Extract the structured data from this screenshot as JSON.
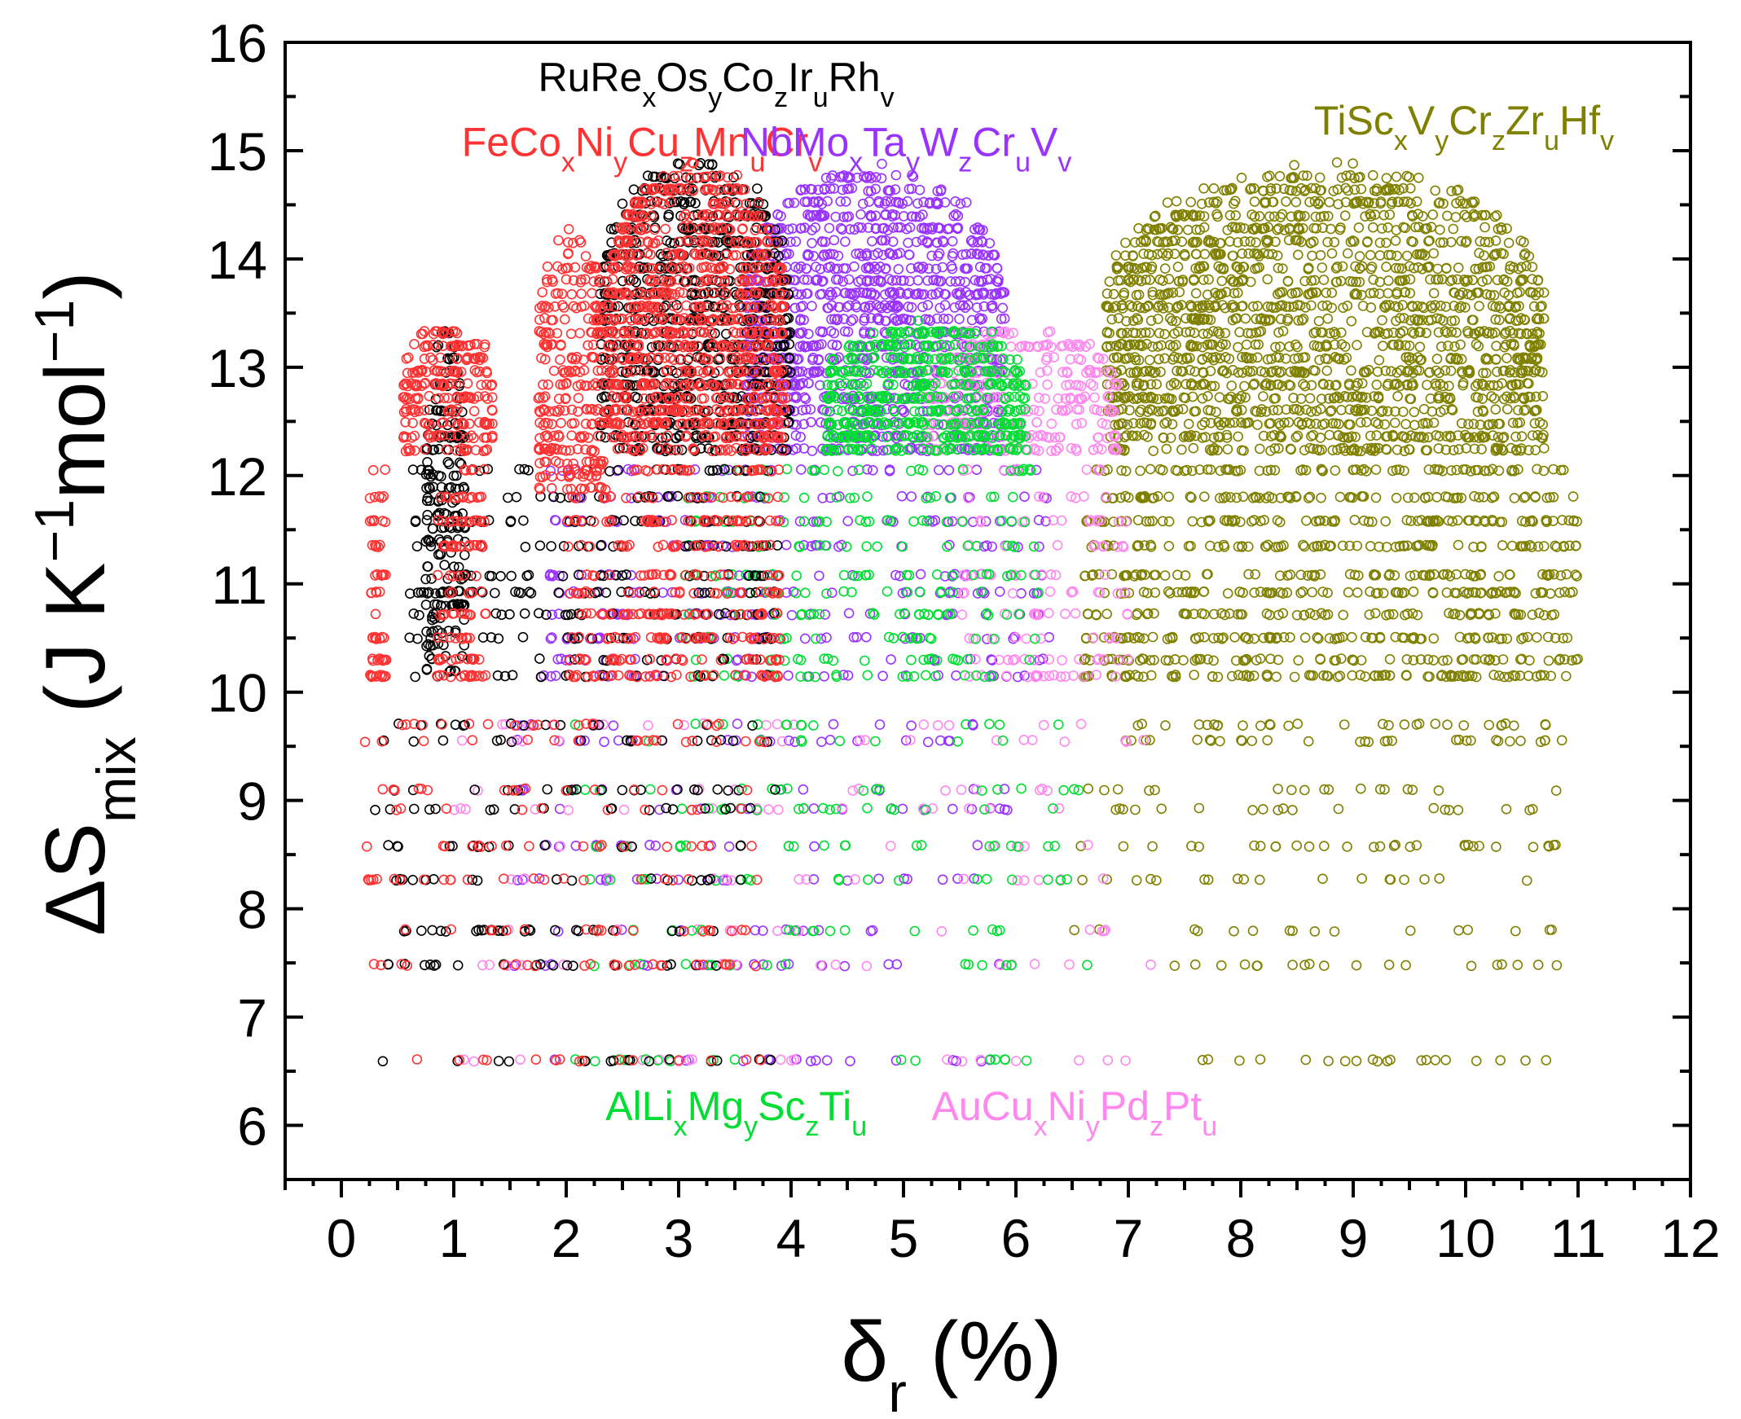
{
  "chart_data": {
    "type": "scatter",
    "xlabel": {
      "main": "δ",
      "sub": "r",
      "rest": " (%)"
    },
    "ylabel": {
      "pre": "ΔS",
      "sub": "mix",
      "mid": " (J K",
      "sup1": "−1",
      "mid2": "mol",
      "sup2": "−1",
      "post": ")"
    },
    "xlim": [
      -0.5,
      12
    ],
    "ylim": [
      5.5,
      16
    ],
    "xticks": [
      0,
      1,
      2,
      3,
      4,
      5,
      6,
      7,
      8,
      9,
      10,
      11,
      12
    ],
    "yticks": [
      6,
      7,
      8,
      9,
      10,
      11,
      12,
      13,
      14,
      15,
      16
    ],
    "marker": "open-circle",
    "grid": false,
    "legend": "inline text labels",
    "y_levels_low": [
      6.6,
      7.48,
      7.8,
      8.27,
      8.58,
      8.92,
      9.1,
      9.55,
      9.7
    ],
    "y_levels_mid": [
      10.15,
      10.3,
      10.5,
      10.72,
      10.92,
      11.08,
      11.35,
      11.58,
      11.8,
      12.05
    ],
    "series": [
      {
        "label_segments": [
          [
            "Ti",
            ""
          ],
          [
            "Sc",
            ""
          ],
          [
            "x",
            "sub"
          ],
          [
            "V",
            ""
          ],
          [
            "y",
            "sub"
          ],
          [
            "Cr",
            ""
          ],
          [
            "z",
            "sub"
          ],
          [
            "Zr",
            ""
          ],
          [
            "u",
            "sub"
          ],
          [
            "Hf",
            ""
          ],
          [
            "v",
            "sub"
          ]
        ],
        "color": "#808000",
        "clusters": [
          {
            "x": [
              6.6,
              11.0
            ],
            "y_levels": "mid",
            "n": 800
          },
          {
            "x": [
              6.5,
              10.9
            ],
            "y_levels": "low",
            "n": 200
          },
          {
            "dome": [
              6.8,
              10.7
            ],
            "y": [
              12.2,
              14.85
            ],
            "n": 1700
          }
        ]
      },
      {
        "label_segments": [
          [
            "Nb",
            ""
          ],
          [
            "Mo",
            ""
          ],
          [
            "x",
            "sub"
          ],
          [
            "Ta",
            ""
          ],
          [
            "y",
            "sub"
          ],
          [
            "W",
            ""
          ],
          [
            "z",
            "sub"
          ],
          [
            "Cr",
            ""
          ],
          [
            "u",
            "sub"
          ],
          [
            "V",
            ""
          ],
          [
            "v",
            "sub"
          ]
        ],
        "color": "#9933ff",
        "clusters": [
          {
            "x": [
              1.8,
              6.3
            ],
            "y_levels": "mid",
            "n": 300
          },
          {
            "x": [
              1.5,
              6.0
            ],
            "y_levels": "low",
            "n": 140
          },
          {
            "dome": [
              3.6,
              5.9
            ],
            "y": [
              12.2,
              14.85
            ],
            "n": 1100
          }
        ]
      },
      {
        "label_segments": [
          [
            "AuCu",
            ""
          ],
          [
            "x",
            "sub"
          ],
          [
            "Ni",
            ""
          ],
          [
            "y",
            "sub"
          ],
          [
            "Pd",
            ""
          ],
          [
            "z",
            "sub"
          ],
          [
            "Pt",
            ""
          ],
          [
            "u",
            "sub"
          ]
        ],
        "color": "#ff88ee",
        "clusters": [
          {
            "x": [
              1.0,
              7.2
            ],
            "y_levels": "low",
            "n": 140
          },
          {
            "x": [
              5.5,
              7.0
            ],
            "y_levels": "mid",
            "n": 120
          },
          {
            "dome": [
              5.2,
              6.9
            ],
            "y": [
              12.2,
              13.4
            ],
            "n": 280
          }
        ]
      },
      {
        "label_segments": [
          [
            "AlLi",
            ""
          ],
          [
            "x",
            "sub"
          ],
          [
            "Mg",
            ""
          ],
          [
            "y",
            "sub"
          ],
          [
            "Sc",
            ""
          ],
          [
            "z",
            "sub"
          ],
          [
            "Ti",
            ""
          ],
          [
            "u",
            "sub"
          ]
        ],
        "color": "#00dd33",
        "clusters": [
          {
            "x": [
              2.0,
              6.7
            ],
            "y_levels": "low",
            "n": 140
          },
          {
            "x": [
              3.0,
              6.2
            ],
            "y_levels": "mid",
            "n": 220
          },
          {
            "dome": [
              4.3,
              6.1
            ],
            "y": [
              12.2,
              13.4
            ],
            "n": 500
          }
        ]
      },
      {
        "label_segments": [
          [
            "RuRe",
            ""
          ],
          [
            "x",
            "sub"
          ],
          [
            "Os",
            ""
          ],
          [
            "y",
            "sub"
          ],
          [
            "Co",
            ""
          ],
          [
            "z",
            "sub"
          ],
          [
            "Ir",
            ""
          ],
          [
            "u",
            "sub"
          ],
          [
            "Rh",
            ""
          ],
          [
            "v",
            "sub"
          ]
        ],
        "color": "#000000",
        "clusters": [
          {
            "x": [
              0.3,
              3.9
            ],
            "y_levels": "low",
            "n": 160
          },
          {
            "x": [
              0.6,
              3.9
            ],
            "y_levels": "mid",
            "n": 260
          },
          {
            "dome": [
              0.75,
              1.1
            ],
            "y": [
              10.2,
              13.4
            ],
            "n": 200
          },
          {
            "dome": [
              2.3,
              4.0
            ],
            "y": [
              12.2,
              14.9
            ],
            "n": 800
          }
        ]
      },
      {
        "label_segments": [
          [
            "FeCo",
            ""
          ],
          [
            "x",
            "sub"
          ],
          [
            "Ni",
            ""
          ],
          [
            "y",
            "sub"
          ],
          [
            "Cu",
            ""
          ],
          [
            "z",
            "sub"
          ],
          [
            "Mn",
            ""
          ],
          [
            "u",
            "sub"
          ],
          [
            "Cr",
            ""
          ],
          [
            "v",
            "sub"
          ]
        ],
        "color": "#ff3333",
        "clusters": [
          {
            "x": [
              0.2,
              3.8
            ],
            "y_levels": "low",
            "n": 160
          },
          {
            "x": [
              0.25,
              0.4
            ],
            "y_levels": "mid",
            "n": 60
          },
          {
            "x": [
              0.85,
              1.3
            ],
            "y_levels": "mid",
            "n": 120
          },
          {
            "x": [
              2.0,
              3.9
            ],
            "y_levels": "mid",
            "n": 320
          },
          {
            "dome": [
              0.55,
              1.35
            ],
            "y": [
              12.2,
              13.4
            ],
            "n": 220
          },
          {
            "dome": [
              1.75,
              2.35
            ],
            "y": [
              11.8,
              14.3
            ],
            "n": 260
          },
          {
            "dome": [
              2.35,
              3.95
            ],
            "y": [
              12.2,
              14.85
            ],
            "n": 900
          }
        ]
      }
    ],
    "labels": [
      {
        "series": 4,
        "anchor": "start",
        "x": 1.75,
        "y": 15.55
      },
      {
        "series": 5,
        "anchor": "start",
        "x": 1.07,
        "y": 14.95
      },
      {
        "series": 1,
        "anchor": "start",
        "x": 3.55,
        "y": 14.95
      },
      {
        "series": 0,
        "anchor": "start",
        "x": 8.65,
        "y": 15.15
      },
      {
        "series": 3,
        "anchor": "start",
        "x": 2.35,
        "y": 6.05
      },
      {
        "series": 2,
        "anchor": "start",
        "x": 5.25,
        "y": 6.05
      }
    ]
  }
}
